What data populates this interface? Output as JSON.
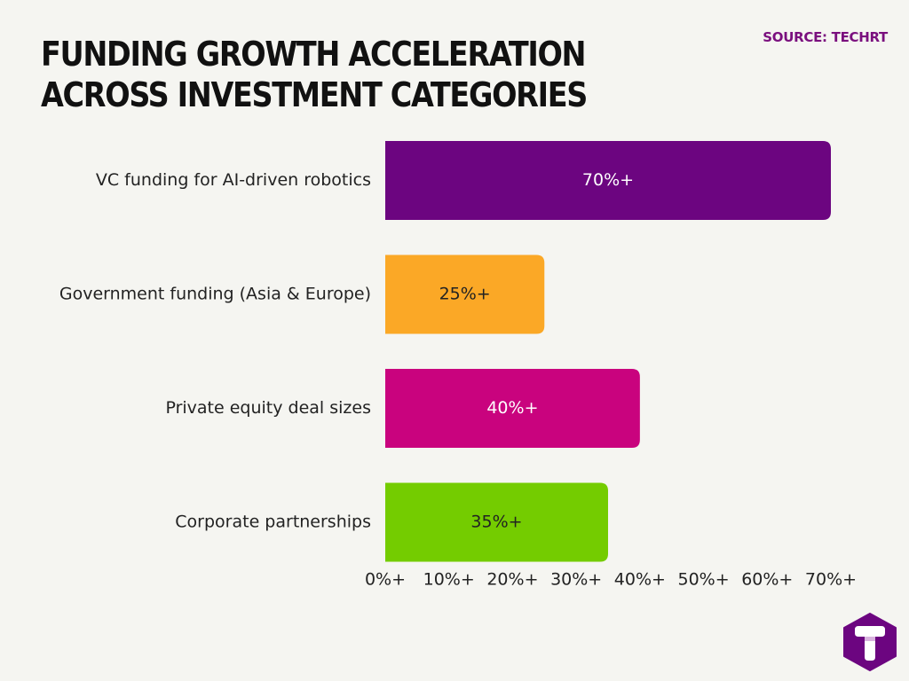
{
  "source": "SOURCE: TECHRT",
  "chart_data": {
    "type": "bar",
    "orientation": "horizontal",
    "title": "FUNDING GROWTH ACCELERATION ACROSS INVESTMENT CATEGORIES",
    "categories": [
      "VC funding for AI-driven robotics",
      "Government funding (Asia & Europe)",
      "Private equity deal sizes",
      "Corporate partnerships"
    ],
    "values": [
      70,
      25,
      40,
      35
    ],
    "value_labels": [
      "70%+",
      "25%+",
      "40%+",
      "35%+"
    ],
    "colors": [
      "#6c0580",
      "#fba826",
      "#c9037e",
      "#74cc00"
    ],
    "label_colors": [
      "#ffffff",
      "#222222",
      "#ffffff",
      "#222222"
    ],
    "x_ticks": [
      0,
      10,
      20,
      30,
      40,
      50,
      60,
      70
    ],
    "x_tick_labels": [
      "0%+",
      "10%+",
      "20%+",
      "30%+",
      "40%+",
      "50%+",
      "60%+",
      "70%+"
    ],
    "xlim": [
      0,
      70
    ],
    "grid": false,
    "legend": "none"
  },
  "logo": {
    "icon": "techrt-hexagon-logo-icon",
    "color": "#6c0580"
  }
}
